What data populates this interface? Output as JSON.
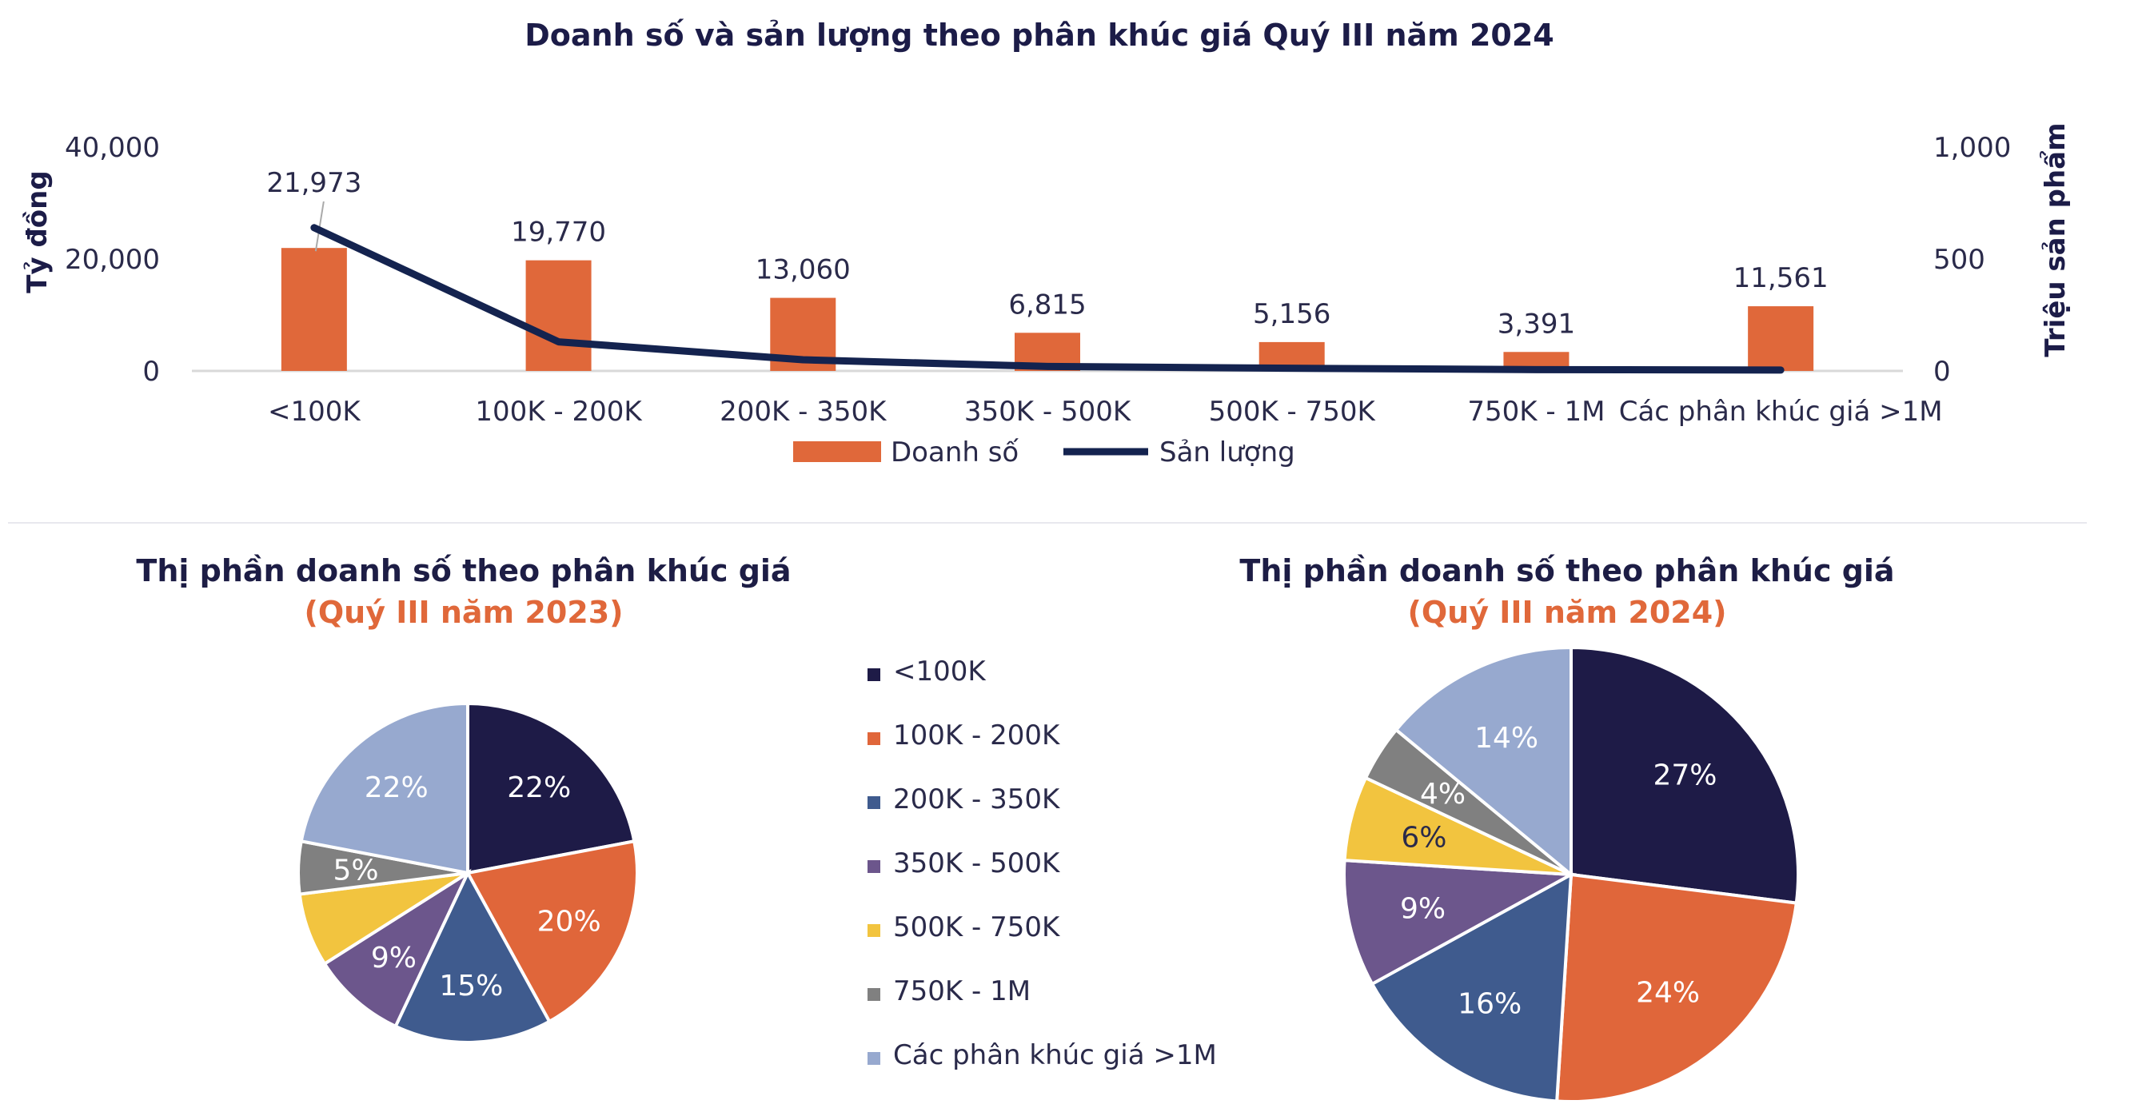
{
  "title": "Doanh số và sản lượng theo phân khúc giá Quý III năm 2024",
  "colors": {
    "bar": "#e0683a",
    "line": "#14234f",
    "segments": [
      "#1e1b47",
      "#e0663a",
      "#3f5b8e",
      "#6c568c",
      "#f2c43f",
      "#808080",
      "#97a9cf"
    ]
  },
  "chart_data": [
    {
      "type": "bar",
      "title": "Doanh số và sản lượng theo phân khúc giá Quý III năm 2024",
      "categories": [
        "<100K",
        "100K - 200K",
        "200K - 350K",
        "350K - 500K",
        "500K - 750K",
        "750K - 1M",
        "Các phân khúc giá >1M"
      ],
      "ylabel": "Tỷ đồng",
      "y2label": "Triệu sản phẩm",
      "ylim": [
        0,
        40000
      ],
      "y2lim": [
        0,
        1000
      ],
      "yticks": [
        "0",
        "20,000",
        "40,000"
      ],
      "y2ticks": [
        "0",
        "500",
        "1,000"
      ],
      "legend_position": "bottom",
      "series": [
        {
          "name": "Doanh số",
          "type": "bar",
          "axis": "left",
          "values": [
            21973,
            19770,
            13060,
            6815,
            5156,
            3391,
            11561
          ],
          "labels": [
            "21,973",
            "19,770",
            "13,060",
            "6,815",
            "5,156",
            "3,391",
            "11,561"
          ]
        },
        {
          "name": "Sản lượng",
          "type": "line",
          "axis": "right",
          "values": [
            640,
            130,
            50,
            20,
            12,
            6,
            4
          ]
        }
      ]
    },
    {
      "type": "pie",
      "title": "Thị phần doanh số theo phân khúc giá",
      "subtitle": "(Quý III năm 2023)",
      "categories": [
        "<100K",
        "100K - 200K",
        "200K - 350K",
        "350K - 500K",
        "500K - 750K",
        "750K - 1M",
        "Các phân khúc giá >1M"
      ],
      "values": [
        22,
        20,
        15,
        9,
        7,
        5,
        22
      ],
      "labels": [
        "22%",
        "20%",
        "15%",
        "9%",
        "",
        "5%",
        "22%"
      ]
    },
    {
      "type": "pie",
      "title": "Thị phần doanh số theo phân khúc giá",
      "subtitle": "(Quý III năm 2024)",
      "categories": [
        "<100K",
        "100K - 200K",
        "200K - 350K",
        "350K - 500K",
        "500K - 750K",
        "750K - 1M",
        "Các phân khúc giá >1M"
      ],
      "values": [
        27,
        24,
        16,
        9,
        6,
        4,
        14
      ],
      "labels": [
        "27%",
        "24%",
        "16%",
        "9%",
        "6%",
        "4%",
        "14%"
      ]
    }
  ],
  "legend": {
    "items": [
      "<100K",
      "100K - 200K",
      "200K - 350K",
      "350K - 500K",
      "500K - 750K",
      "750K - 1M",
      "Các phân khúc giá >1M"
    ]
  }
}
